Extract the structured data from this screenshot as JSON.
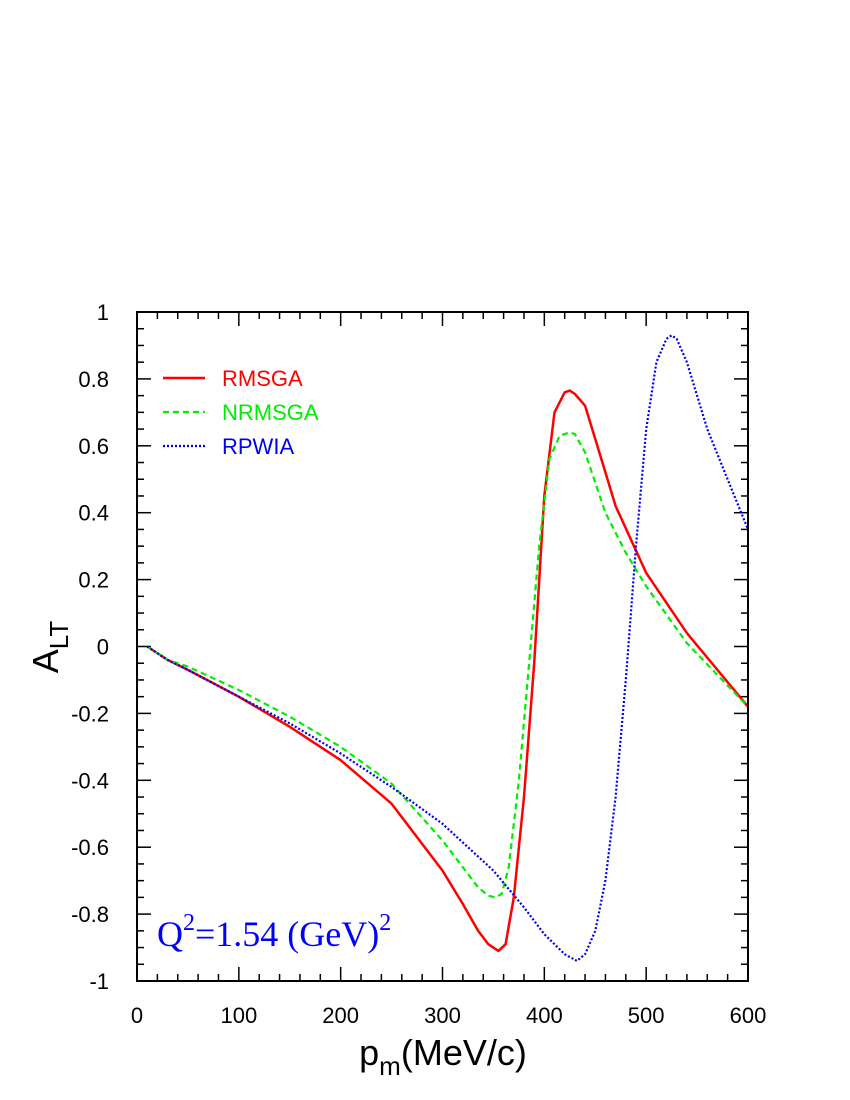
{
  "chart_data": {
    "type": "line",
    "xlim": [
      0,
      600
    ],
    "ylim": [
      -1,
      1
    ],
    "x_ticks": [
      "0",
      "100",
      "200",
      "300",
      "400",
      "500",
      "600"
    ],
    "y_ticks": [
      "-1",
      "-0.8",
      "-0.6",
      "-0.4",
      "-0.2",
      "0",
      "0.2",
      "0.4",
      "0.6",
      "0.8",
      "1"
    ],
    "xlabel": {
      "main": "p",
      "sub": "m",
      "rest": "(MeV/c)"
    },
    "ylabel": {
      "main": "A",
      "sub": "LT"
    },
    "grid": false,
    "legend_position": "top-left",
    "annotation": {
      "part1": "Q",
      "sup1": "2",
      "part2": "=1.54 (GeV)",
      "sup2": "2"
    },
    "series": [
      {
        "name": "RMSGA",
        "color": "#ff0000",
        "style": "solid",
        "x": [
          10,
          30,
          50,
          100,
          150,
          200,
          250,
          300,
          320,
          335,
          345,
          355,
          362,
          370,
          380,
          390,
          400,
          410,
          420,
          425,
          430,
          440,
          450,
          470,
          500,
          540,
          600
        ],
        "y": [
          0,
          -0.04,
          -0.07,
          -0.15,
          -0.24,
          -0.34,
          -0.47,
          -0.67,
          -0.77,
          -0.85,
          -0.89,
          -0.91,
          -0.89,
          -0.75,
          -0.45,
          -0.05,
          0.45,
          0.7,
          0.76,
          0.765,
          0.755,
          0.72,
          0.62,
          0.42,
          0.22,
          0.04,
          -0.18
        ]
      },
      {
        "name": "NRMSGA",
        "color": "#00ee00",
        "style": "dashed",
        "x": [
          10,
          30,
          50,
          100,
          150,
          200,
          250,
          300,
          320,
          335,
          345,
          352,
          358,
          365,
          375,
          385,
          395,
          405,
          415,
          425,
          430,
          440,
          460,
          480,
          500,
          540,
          600
        ],
        "y": [
          0,
          -0.04,
          -0.06,
          -0.13,
          -0.21,
          -0.3,
          -0.41,
          -0.58,
          -0.66,
          -0.72,
          -0.745,
          -0.75,
          -0.74,
          -0.66,
          -0.4,
          -0.05,
          0.3,
          0.56,
          0.63,
          0.64,
          0.635,
          0.58,
          0.4,
          0.28,
          0.18,
          0.01,
          -0.18
        ]
      },
      {
        "name": "RPWIA",
        "color": "#0000ee",
        "style": "dotted",
        "x": [
          10,
          30,
          50,
          100,
          150,
          200,
          250,
          300,
          350,
          380,
          400,
          420,
          432,
          440,
          450,
          460,
          470,
          480,
          490,
          500,
          510,
          520,
          525,
          530,
          540,
          560,
          580,
          600
        ],
        "y": [
          0,
          -0.04,
          -0.07,
          -0.15,
          -0.23,
          -0.32,
          -0.42,
          -0.53,
          -0.67,
          -0.78,
          -0.86,
          -0.92,
          -0.94,
          -0.92,
          -0.85,
          -0.7,
          -0.45,
          -0.1,
          0.3,
          0.65,
          0.85,
          0.92,
          0.93,
          0.92,
          0.85,
          0.65,
          0.5,
          0.35
        ]
      }
    ]
  }
}
